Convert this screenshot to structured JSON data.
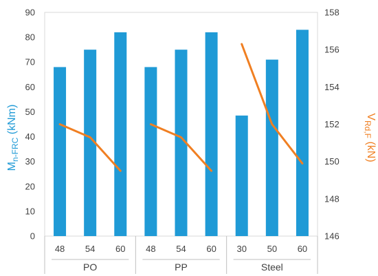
{
  "chart_data": {
    "type": "bar+line",
    "groups": [
      "PO",
      "PP",
      "Steel"
    ],
    "categories": [
      "48",
      "54",
      "60",
      "48",
      "54",
      "60",
      "30",
      "50",
      "60"
    ],
    "ylabel_left": {
      "main": "M",
      "sub": "n-FRC",
      "tail": " (kNm)"
    },
    "ylabel_right": {
      "main": "V",
      "sub": "Rd,F",
      "tail": " (kN)"
    },
    "y_left": {
      "min": 0,
      "max": 90,
      "step": 10,
      "ticks": [
        "0",
        "10",
        "20",
        "30",
        "40",
        "50",
        "60",
        "70",
        "80",
        "90"
      ]
    },
    "y_right": {
      "min": 146,
      "max": 158,
      "step": 2,
      "ticks": [
        "146",
        "148",
        "150",
        "152",
        "154",
        "156",
        "158"
      ]
    },
    "bars": {
      "values": [
        68,
        75,
        82,
        68,
        75,
        82,
        48.5,
        71,
        83
      ],
      "color": "#1f9ad6"
    },
    "lines": {
      "color": "#f07f22",
      "segments": [
        {
          "group": "PO",
          "values": [
            152.0,
            151.3,
            149.5
          ]
        },
        {
          "group": "PP",
          "values": [
            152.0,
            151.3,
            149.5
          ]
        },
        {
          "group": "Steel",
          "values": [
            156.3,
            152.0,
            149.9
          ]
        }
      ]
    },
    "grid": false,
    "axis_colors": {
      "left": "#1f9ad6",
      "right": "#f07f22",
      "tick_text": "#404040"
    }
  }
}
